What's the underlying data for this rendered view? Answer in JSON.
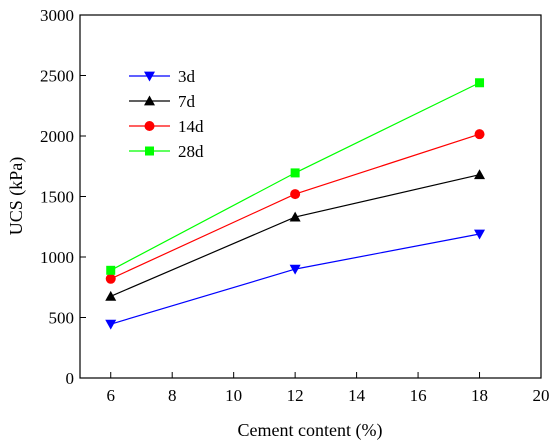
{
  "chart_data": {
    "type": "line",
    "xlabel": "Cement content (%)",
    "ylabel": "UCS (kPa)",
    "xlim": [
      5,
      20
    ],
    "ylim": [
      0,
      3000
    ],
    "xticks": [
      6,
      8,
      10,
      12,
      14,
      16,
      18,
      20
    ],
    "yticks": [
      0,
      500,
      1000,
      1500,
      2000,
      2500,
      3000
    ],
    "grid": false,
    "legend_position": "top-left",
    "x": [
      6,
      12,
      18
    ],
    "series": [
      {
        "name": "3d",
        "values": [
          445,
          900,
          1190
        ],
        "color": "#0000ff",
        "marker": "triangle-down"
      },
      {
        "name": "7d",
        "values": [
          675,
          1330,
          1680
        ],
        "color": "#000000",
        "marker": "triangle-up"
      },
      {
        "name": "14d",
        "values": [
          820,
          1520,
          2015
        ],
        "color": "#ff0000",
        "marker": "circle"
      },
      {
        "name": "28d",
        "values": [
          890,
          1695,
          2440
        ],
        "color": "#00ff00",
        "marker": "square"
      }
    ]
  }
}
